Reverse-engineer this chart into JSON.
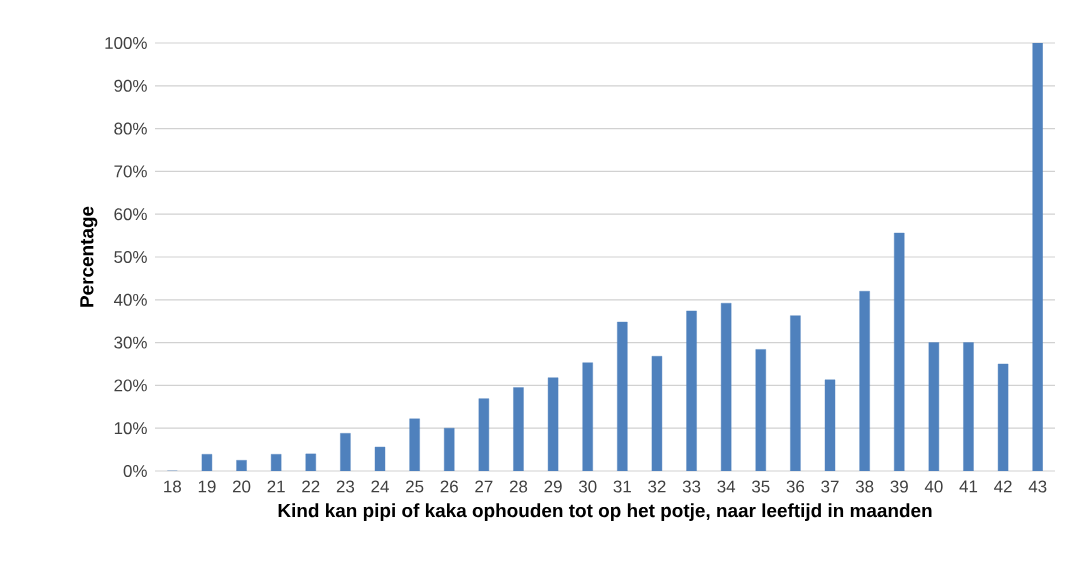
{
  "chart_data": {
    "type": "bar",
    "xlabel": "Kind kan pipi of kaka ophouden tot op het potje, naar leeftijd in maanden",
    "ylabel": "Percentage",
    "categories": [
      "18",
      "19",
      "20",
      "21",
      "22",
      "23",
      "24",
      "25",
      "26",
      "27",
      "28",
      "29",
      "30",
      "31",
      "32",
      "33",
      "34",
      "35",
      "36",
      "37",
      "38",
      "39",
      "40",
      "41",
      "42",
      "43"
    ],
    "values": [
      0,
      3.9,
      2.5,
      3.9,
      4.0,
      8.8,
      5.6,
      12.2,
      10.0,
      16.9,
      19.5,
      21.8,
      25.3,
      34.8,
      26.8,
      37.4,
      39.2,
      28.4,
      36.3,
      21.3,
      42.0,
      55.6,
      30,
      30,
      25,
      100
    ],
    "color": "#4f81bd",
    "ylim": [
      0,
      100
    ],
    "yticks": [
      {
        "value": 0,
        "label": "0%"
      },
      {
        "value": 10,
        "label": "10%"
      },
      {
        "value": 20,
        "label": "20%"
      },
      {
        "value": 30,
        "label": "30%"
      },
      {
        "value": 40,
        "label": "40%"
      },
      {
        "value": 50,
        "label": "50%"
      },
      {
        "value": 60,
        "label": "60%"
      },
      {
        "value": 70,
        "label": "70%"
      },
      {
        "value": 80,
        "label": "80%"
      },
      {
        "value": 90,
        "label": "90%"
      },
      {
        "value": 100,
        "label": "100%"
      }
    ],
    "grid": "y"
  }
}
